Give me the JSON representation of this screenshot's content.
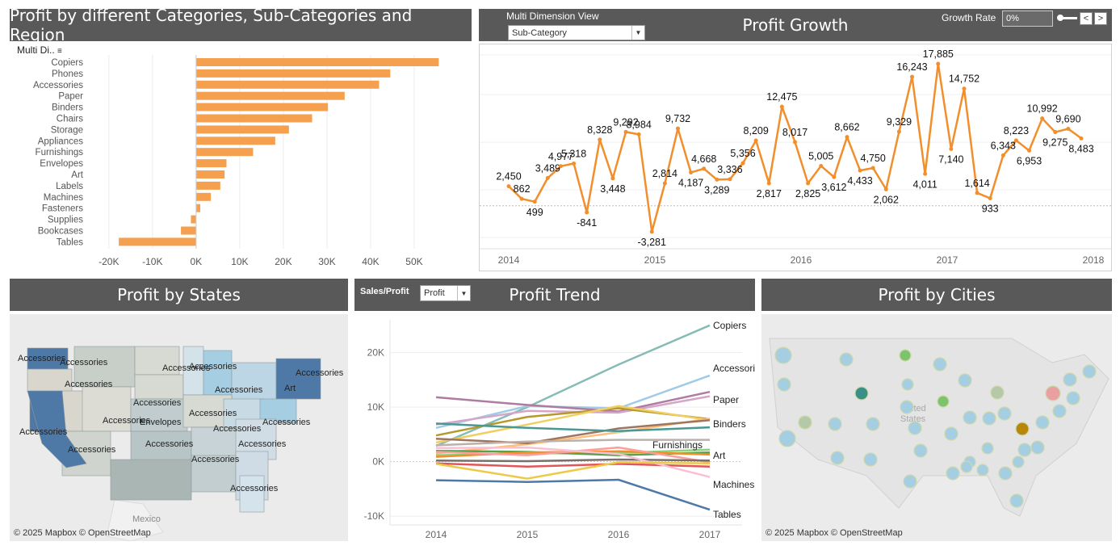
{
  "colors": {
    "header_bg": "#595959",
    "bar_orange": "#f5a04f",
    "line_orange": "#f28e2b",
    "map_blue_dark": "#4e79a7",
    "map_blue_light": "#a6cee3",
    "map_gray": "#d9d6cd"
  },
  "panel1": {
    "title": "Profit by different Categories, Sub-Categories and Region",
    "column_header": "Multi Di..",
    "chart_data": {
      "type": "bar",
      "orientation": "horizontal",
      "categories": [
        "Copiers",
        "Phones",
        "Accessories",
        "Paper",
        "Binders",
        "Chairs",
        "Storage",
        "Appliances",
        "Furnishings",
        "Envelopes",
        "Art",
        "Labels",
        "Machines",
        "Fasteners",
        "Supplies",
        "Bookcases",
        "Tables"
      ],
      "values": [
        55618,
        44516,
        41937,
        34054,
        30222,
        26590,
        21279,
        18138,
        13059,
        6964,
        6528,
        5546,
        3385,
        950,
        -1189,
        -3473,
        -17725
      ],
      "xlim": [
        -22000,
        60000
      ],
      "xticks": [
        -20000,
        -10000,
        0,
        10000,
        20000,
        30000,
        40000,
        50000
      ],
      "xtick_labels": [
        "-20K",
        "-10K",
        "0K",
        "10K",
        "20K",
        "30K",
        "40K",
        "50K"
      ]
    }
  },
  "panel2": {
    "title": "Profit Growth",
    "dimension_label": "Multi Dimension View",
    "dimension_value": "Sub-Category",
    "growth_label": "Growth Rate",
    "growth_value": "0%",
    "prev_label": "<",
    "next_label": ">",
    "chart_data": {
      "type": "line",
      "values": [
        2450,
        862,
        499,
        3489,
        4977,
        5318,
        -841,
        8328,
        3448,
        9292,
        8984,
        -3281,
        2814,
        9732,
        4187,
        4668,
        3289,
        3336,
        5356,
        8209,
        2817,
        12475,
        8017,
        2825,
        5005,
        3612,
        8662,
        4433,
        4750,
        2062,
        9329,
        16243,
        4011,
        17885,
        7140,
        14752,
        1614,
        933,
        6343,
        8223,
        6953,
        10992,
        9275,
        9690,
        8483
      ],
      "labels": [
        "2,450",
        "862",
        "499",
        "3,489",
        "4,977",
        "5,318",
        "-841",
        "8,328",
        "3,448",
        "9,292",
        "8,984",
        "-3,281",
        "2,814",
        "9,732",
        "4,187",
        "4,668",
        "3,289",
        "3,336",
        "5,356",
        "8,209",
        "2,817",
        "12,475",
        "8,017",
        "2,825",
        "5,005",
        "3,612",
        "8,662",
        "4,433",
        "4,750",
        "2,062",
        "9,329",
        "16,243",
        "4,011",
        "17,885",
        "7,140",
        "14,752",
        "1,614",
        "933",
        "6,343",
        "8,223",
        "6,953",
        "10,992",
        "9,275",
        "9,690",
        "8,483"
      ],
      "x_axis": [
        "2014",
        "2015",
        "2016",
        "2017",
        "2018"
      ],
      "ylim": [
        -4000,
        19000
      ]
    }
  },
  "panel3": {
    "title": "Profit by States",
    "attribution": "© 2025 Mapbox © OpenStreetMap",
    "country_label": "Mexico",
    "state_labels": [
      "Accessories",
      "Accessories",
      "Accessories",
      "Accessories",
      "Accessories",
      "Accessories",
      "Accessories",
      "Art",
      "Accessories",
      "Envelopes",
      "Accessories",
      "Accessories",
      "Accessories",
      "Accessories",
      "Accessories",
      "Accessories",
      "Accessories",
      "Accessories",
      "Accessories",
      "Accessories"
    ]
  },
  "panel4": {
    "title": "Profit Trend",
    "measure_label": "Sales/Profit",
    "measure_value": "Profit",
    "chart_data": {
      "type": "line",
      "x": [
        "2014",
        "2015",
        "2016",
        "2017"
      ],
      "yticks": [
        "20K",
        "10K",
        "0K",
        "-10K"
      ],
      "ylim": [
        -11000,
        26000
      ],
      "series": [
        {
          "name": "Copiers",
          "color": "#86bcb6",
          "values": [
            2900,
            10000,
            17800,
            25000
          ]
        },
        {
          "name": "Accessories",
          "color": "#a0cbe8",
          "values": [
            6200,
            10200,
            9800,
            15800
          ]
        },
        {
          "name": "Paper",
          "color": "#b07aa1",
          "values": [
            11800,
            10400,
            9200,
            12800
          ]
        },
        {
          "name": "",
          "color": "#d4a6c8",
          "values": [
            6800,
            9300,
            9000,
            12000
          ]
        },
        {
          "name": "Binders",
          "color": "#b6992d",
          "values": [
            4800,
            8200,
            9800,
            7800
          ]
        },
        {
          "name": "",
          "color": "#f1ce63",
          "values": [
            3500,
            6800,
            10200,
            7600
          ]
        },
        {
          "name": "",
          "color": "#ffbe7d",
          "values": [
            1500,
            3200,
            5400,
            7900
          ]
        },
        {
          "name": "",
          "color": "#9d7660",
          "values": [
            4200,
            3400,
            6100,
            7600
          ]
        },
        {
          "name": "",
          "color": "#499894",
          "values": [
            7000,
            6200,
            5600,
            6300
          ]
        },
        {
          "name": "Furnishings",
          "color": "#bab0ac",
          "values": [
            3000,
            3700,
            4000,
            4000
          ]
        },
        {
          "name": "Art",
          "color": "#8cd17d",
          "values": [
            1200,
            1500,
            1600,
            2200
          ]
        },
        {
          "name": "",
          "color": "#59a14f",
          "values": [
            2000,
            1800,
            1200,
            1700
          ]
        },
        {
          "name": "",
          "color": "#f28e2b",
          "values": [
            900,
            1700,
            1900,
            1300
          ]
        },
        {
          "name": "",
          "color": "#ff9d9a",
          "values": [
            1800,
            1200,
            2600,
            -100
          ]
        },
        {
          "name": "",
          "color": "#79706e",
          "values": [
            200,
            100,
            400,
            200
          ]
        },
        {
          "name": "",
          "color": "#e15759",
          "values": [
            -300,
            -900,
            -400,
            -900
          ]
        },
        {
          "name": "Machines",
          "color": "#fabfd2",
          "values": [
            2500,
            2600,
            1400,
            -2800
          ]
        },
        {
          "name": "",
          "color": "#edc948",
          "values": [
            -400,
            -3100,
            -100,
            -300
          ]
        },
        {
          "name": "Tables",
          "color": "#4e79a7",
          "values": [
            -3400,
            -3700,
            -3300,
            -8800
          ]
        }
      ]
    }
  },
  "panel5": {
    "title": "Profit by Cities",
    "attribution": "© 2025 Mapbox © OpenStreetMap",
    "map_label_line1": "United",
    "map_label_line2": "States"
  }
}
